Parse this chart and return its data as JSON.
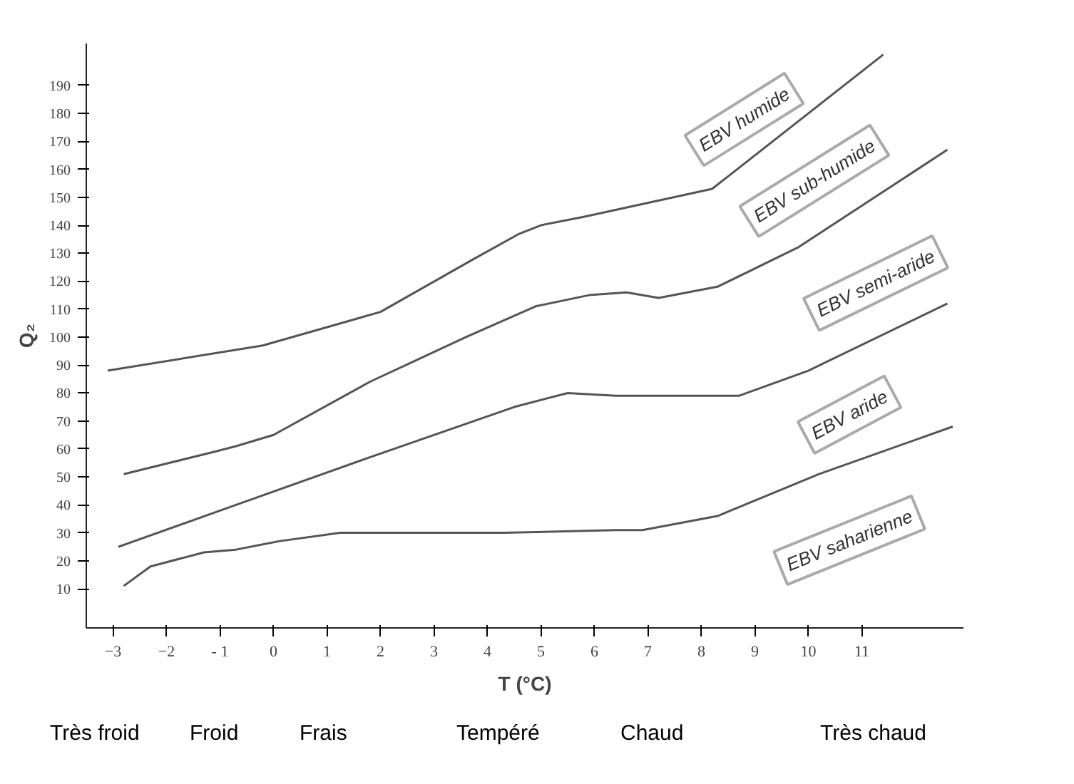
{
  "chart_data": {
    "type": "line",
    "xlabel": "T (°C)",
    "ylabel": "Q₂",
    "xlim": [
      -3.5,
      12.9
    ],
    "ylim": [
      -4,
      205
    ],
    "xticks": [
      -3,
      -2,
      {
        "value": -1,
        "label": "- 1"
      },
      0,
      1,
      2,
      3,
      4,
      5,
      6,
      7,
      8,
      9,
      10,
      11
    ],
    "yticks": [
      10,
      20,
      30,
      40,
      50,
      60,
      70,
      80,
      90,
      100,
      110,
      120,
      130,
      140,
      150,
      160,
      170,
      180,
      190
    ],
    "grid": false,
    "marker": "none",
    "line_style": "solid",
    "series": [
      {
        "color": "#555555",
        "x": [
          -3.1,
          -0.2,
          2.0,
          3.75,
          4.6,
          5.0,
          5.8,
          8.2,
          11.4
        ],
        "values": [
          88,
          97,
          109,
          128,
          137,
          140,
          143,
          153,
          201
        ]
      },
      {
        "color": "#555555",
        "x": [
          -2.8,
          -1.1,
          -0.7,
          0.0,
          1.8,
          3.6,
          4.9,
          5.9,
          6.6,
          7.2,
          8.3,
          9.8,
          12.6
        ],
        "values": [
          51,
          59,
          61,
          65,
          84,
          100,
          111,
          115,
          116,
          114,
          118,
          132,
          167
        ]
      },
      {
        "color": "#555555",
        "x": [
          -2.9,
          -0.7,
          1.8,
          4.5,
          5.5,
          6.4,
          7.8,
          8.7,
          10.0,
          12.6
        ],
        "values": [
          25,
          40,
          57,
          75,
          80,
          79,
          79,
          79,
          88,
          112
        ]
      },
      {
        "color": "#555555",
        "x": [
          -2.8,
          -2.3,
          -1.3,
          -0.7,
          0.1,
          1.25,
          4.3,
          6.4,
          6.9,
          8.3,
          10.2,
          12.7
        ],
        "values": [
          11,
          18,
          23,
          24,
          27,
          30,
          30,
          31,
          31,
          36,
          51,
          68
        ]
      }
    ],
    "annotations": [
      "EBV humide",
      "EBV sub-humide",
      "EBV semi-aride",
      "EBV aride",
      "EBV saharienne",
      "Très froid",
      "Froid",
      "Frais",
      "Tempéré",
      "Chaud",
      "Très chaud"
    ]
  }
}
